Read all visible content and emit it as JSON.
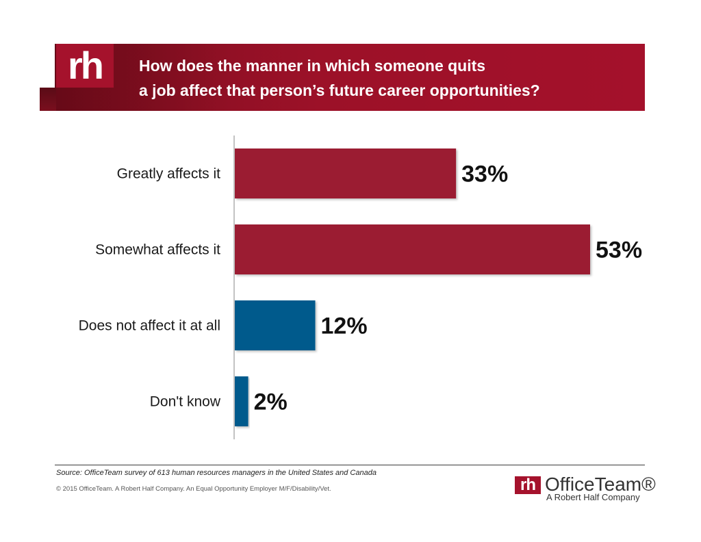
{
  "header": {
    "logo_text": "rh",
    "title_line1": "How does the manner in which someone quits",
    "title_line2": "a job affect that person’s future career opportunities?"
  },
  "chart_data": {
    "type": "bar",
    "orientation": "horizontal",
    "title": "How does the manner in which someone quits a job affect that person’s future career opportunities?",
    "categories": [
      "Greatly affects it",
      "Somewhat affects it",
      "Does not affect it at all",
      "Don't know"
    ],
    "values": [
      33,
      53,
      12,
      2
    ],
    "value_labels": [
      "33%",
      "53%",
      "12%",
      "2%"
    ],
    "colors": [
      "#9b1b30",
      "#9b1b30",
      "#005a8c",
      "#005a8c"
    ],
    "xlim": [
      0,
      53
    ],
    "xlabel": "",
    "ylabel": "",
    "grid": false,
    "legend": "none"
  },
  "footer": {
    "source": "Source: OfficeTeam survey of 613 human resources managers in the United States and Canada",
    "copyright": "© 2015 OfficeTeam. A Robert Half Company. An Equal Opportunity Employer M/F/Disability/Vet.",
    "brand_mark": "rh",
    "brand_name": "OfficeTeam®",
    "brand_tagline": "A Robert Half Company"
  }
}
